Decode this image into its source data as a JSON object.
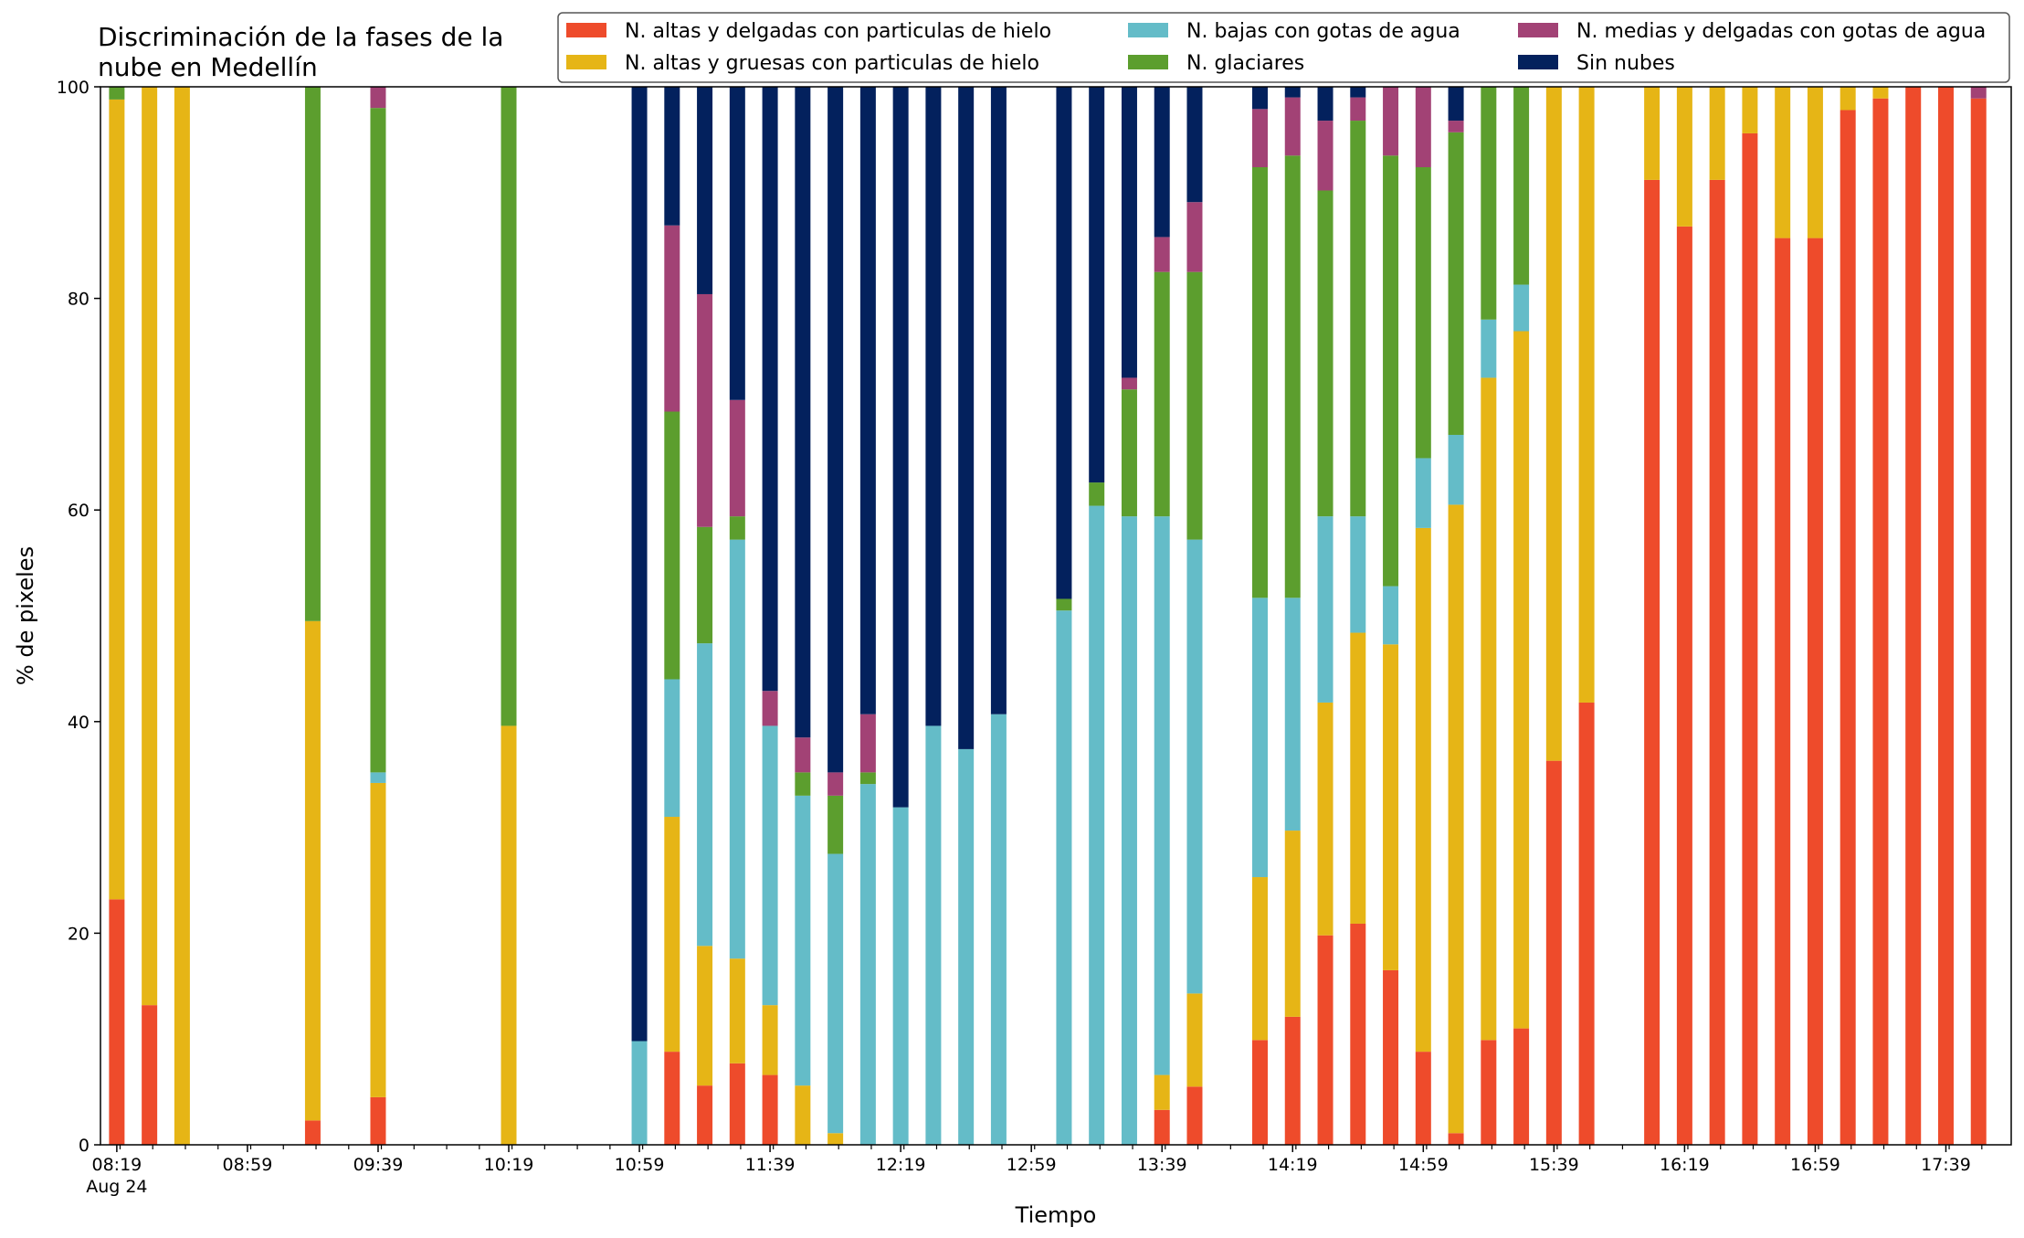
{
  "chart_data": {
    "type": "bar",
    "stacked": true,
    "title_lines": [
      "Discriminación de la fases de la",
      "nube en Medellín"
    ],
    "xlabel": "Tiempo",
    "ylabel": "% de pixeles",
    "ylim": [
      0,
      100
    ],
    "yticks": [
      0,
      20,
      40,
      60,
      80,
      100
    ],
    "xlim": [
      "08:14",
      "17:59"
    ],
    "x_tick_labels": [
      {
        "time": "08:19",
        "label": "08:19",
        "sublabel": "Aug 24"
      },
      {
        "time": "08:59",
        "label": "08:59"
      },
      {
        "time": "09:39",
        "label": "09:39"
      },
      {
        "time": "10:19",
        "label": "10:19"
      },
      {
        "time": "10:59",
        "label": "10:59"
      },
      {
        "time": "11:39",
        "label": "11:39"
      },
      {
        "time": "12:19",
        "label": "12:19"
      },
      {
        "time": "12:59",
        "label": "12:59"
      },
      {
        "time": "13:39",
        "label": "13:39"
      },
      {
        "time": "14:19",
        "label": "14:19"
      },
      {
        "time": "14:59",
        "label": "14:59"
      },
      {
        "time": "15:39",
        "label": "15:39"
      },
      {
        "time": "16:19",
        "label": "16:19"
      },
      {
        "time": "16:59",
        "label": "16:59"
      },
      {
        "time": "17:39",
        "label": "17:39"
      }
    ],
    "x_minor_tick_step_minutes": 10,
    "grid": false,
    "legend_position": "top-right",
    "legend_columns": 3,
    "series": [
      {
        "name": "N. altas y delgadas con particulas de hielo",
        "color": "#EE4B2B"
      },
      {
        "name": "N. altas y gruesas con particulas de hielo",
        "color": "#E6B516"
      },
      {
        "name": "N. bajas con gotas de agua",
        "color": "#64BCC8"
      },
      {
        "name": "N. glaciares",
        "color": "#5C9E2E"
      },
      {
        "name": "N. medias y delgadas con gotas de agua",
        "color": "#A24275"
      },
      {
        "name": "Sin nubes",
        "color": "#03215D"
      }
    ],
    "bars": [
      {
        "time": "08:19",
        "values": [
          23.2,
          75.6,
          0,
          1.2,
          0,
          0
        ]
      },
      {
        "time": "08:29",
        "values": [
          13.2,
          86.8,
          0,
          0,
          0,
          0
        ]
      },
      {
        "time": "08:39",
        "values": [
          0,
          100,
          0,
          0,
          0,
          0
        ]
      },
      {
        "time": "09:19",
        "values": [
          2.3,
          47.2,
          0,
          50.5,
          0,
          0
        ]
      },
      {
        "time": "09:39",
        "values": [
          4.5,
          29.7,
          1.0,
          62.8,
          2.0,
          0
        ]
      },
      {
        "time": "10:19",
        "values": [
          0,
          39.6,
          0,
          60.4,
          0,
          0
        ]
      },
      {
        "time": "10:59",
        "values": [
          0,
          0,
          9.8,
          0,
          0,
          90.2
        ]
      },
      {
        "time": "11:09",
        "values": [
          8.8,
          22.2,
          13.0,
          25.3,
          17.6,
          13.1
        ]
      },
      {
        "time": "11:19",
        "values": [
          5.6,
          13.2,
          28.6,
          11.0,
          22.0,
          19.6
        ]
      },
      {
        "time": "11:29",
        "values": [
          7.7,
          9.9,
          39.6,
          2.2,
          11.0,
          29.6
        ]
      },
      {
        "time": "11:39",
        "values": [
          6.6,
          6.6,
          26.4,
          0,
          3.3,
          57.1
        ]
      },
      {
        "time": "11:49",
        "values": [
          0,
          5.6,
          27.4,
          2.2,
          3.3,
          61.5
        ]
      },
      {
        "time": "11:59",
        "values": [
          0,
          1.1,
          26.4,
          5.5,
          2.2,
          64.8
        ]
      },
      {
        "time": "12:09",
        "values": [
          0,
          0,
          34.1,
          1.1,
          5.5,
          59.3
        ]
      },
      {
        "time": "12:19",
        "values": [
          0,
          0,
          31.9,
          0,
          0,
          68.1
        ]
      },
      {
        "time": "12:29",
        "values": [
          0,
          0,
          39.6,
          0,
          0,
          60.4
        ]
      },
      {
        "time": "12:39",
        "values": [
          0,
          0,
          37.4,
          0,
          0,
          62.6
        ]
      },
      {
        "time": "12:49",
        "values": [
          0,
          0,
          40.7,
          0,
          0,
          59.3
        ]
      },
      {
        "time": "13:09",
        "values": [
          0,
          0,
          50.5,
          1.1,
          0,
          48.4
        ]
      },
      {
        "time": "13:19",
        "values": [
          0,
          0,
          60.4,
          2.2,
          0,
          37.4
        ]
      },
      {
        "time": "13:29",
        "values": [
          0,
          0,
          59.4,
          12.0,
          1.1,
          27.5
        ]
      },
      {
        "time": "13:39",
        "values": [
          3.3,
          3.3,
          52.8,
          23.1,
          3.3,
          14.2
        ]
      },
      {
        "time": "13:49",
        "values": [
          5.5,
          8.8,
          42.9,
          25.3,
          6.6,
          10.9
        ]
      },
      {
        "time": "14:09",
        "values": [
          9.9,
          15.4,
          26.4,
          40.7,
          5.5,
          2.1
        ]
      },
      {
        "time": "14:19",
        "values": [
          12.1,
          17.6,
          22.0,
          41.8,
          5.5,
          1.0
        ]
      },
      {
        "time": "14:29",
        "values": [
          19.8,
          22.0,
          17.6,
          30.8,
          6.6,
          3.2
        ]
      },
      {
        "time": "14:39",
        "values": [
          20.9,
          27.5,
          11.0,
          37.4,
          2.2,
          1.0
        ]
      },
      {
        "time": "14:49",
        "values": [
          16.5,
          30.8,
          5.5,
          40.7,
          6.5,
          0
        ]
      },
      {
        "time": "14:59",
        "values": [
          8.8,
          49.5,
          6.6,
          27.5,
          7.6,
          0
        ]
      },
      {
        "time": "15:09",
        "values": [
          1.1,
          59.4,
          6.6,
          28.6,
          1.1,
          3.2
        ]
      },
      {
        "time": "15:19",
        "values": [
          9.9,
          62.6,
          5.5,
          22.0,
          0,
          0
        ]
      },
      {
        "time": "15:29",
        "values": [
          11.0,
          65.9,
          4.4,
          18.7,
          0,
          0
        ]
      },
      {
        "time": "15:39",
        "values": [
          36.3,
          63.7,
          0,
          0,
          0,
          0
        ]
      },
      {
        "time": "15:49",
        "values": [
          41.8,
          58.2,
          0,
          0,
          0,
          0
        ]
      },
      {
        "time": "16:09",
        "values": [
          91.2,
          8.8,
          0,
          0,
          0,
          0
        ]
      },
      {
        "time": "16:19",
        "values": [
          86.8,
          13.2,
          0,
          0,
          0,
          0
        ]
      },
      {
        "time": "16:29",
        "values": [
          91.2,
          8.8,
          0,
          0,
          0,
          0
        ]
      },
      {
        "time": "16:39",
        "values": [
          95.6,
          4.4,
          0,
          0,
          0,
          0
        ]
      },
      {
        "time": "16:49",
        "values": [
          85.7,
          14.3,
          0,
          0,
          0,
          0
        ]
      },
      {
        "time": "16:59",
        "values": [
          85.7,
          14.3,
          0,
          0,
          0,
          0
        ]
      },
      {
        "time": "17:09",
        "values": [
          97.8,
          2.2,
          0,
          0,
          0,
          0
        ]
      },
      {
        "time": "17:19",
        "values": [
          98.9,
          1.1,
          0,
          0,
          0,
          0
        ]
      },
      {
        "time": "17:29",
        "values": [
          100,
          0,
          0,
          0,
          0,
          0
        ]
      },
      {
        "time": "17:39",
        "values": [
          100,
          0,
          0,
          0,
          0,
          0
        ]
      },
      {
        "time": "17:49",
        "values": [
          98.9,
          0,
          0,
          0,
          1.1,
          0
        ]
      }
    ]
  }
}
